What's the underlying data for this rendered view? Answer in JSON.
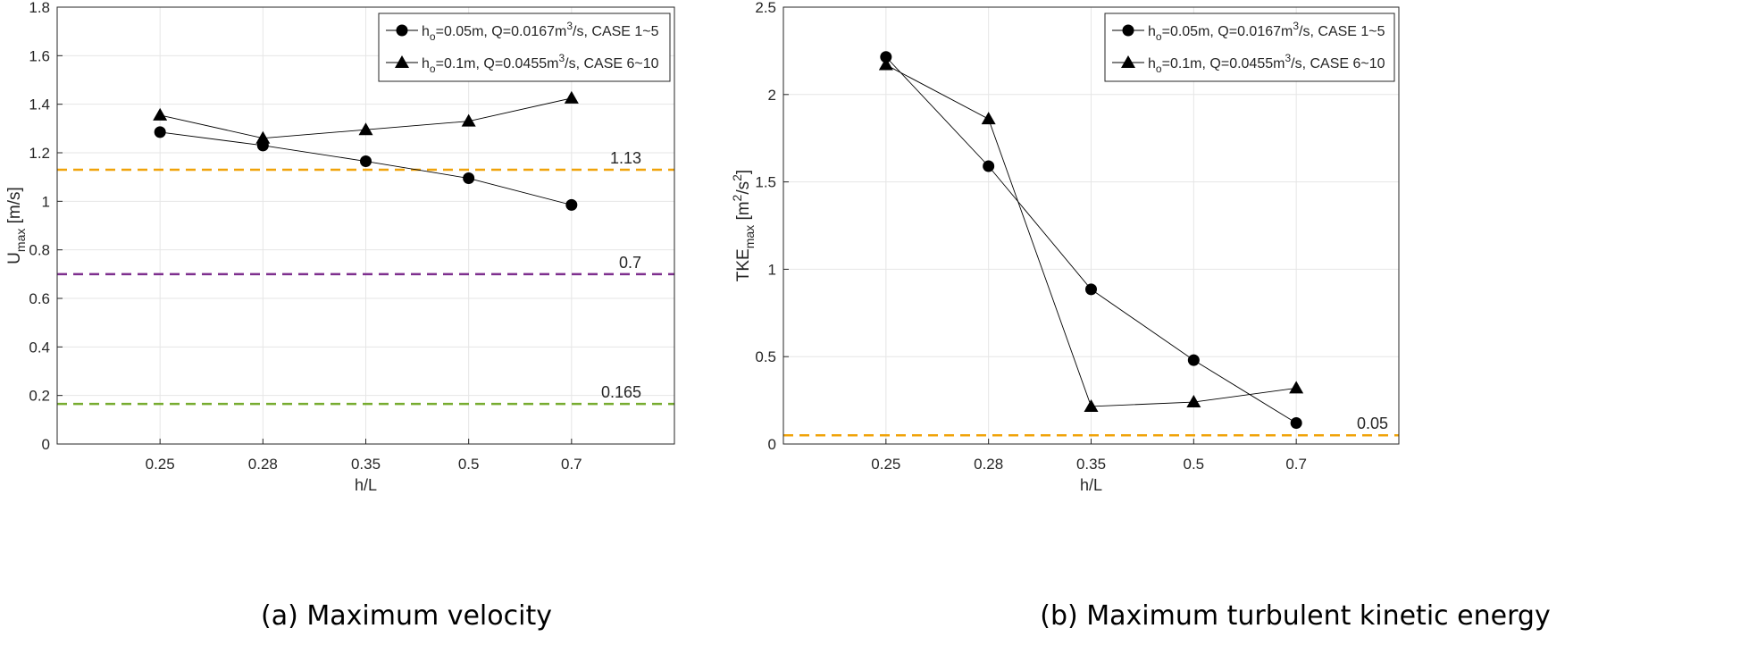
{
  "captions": {
    "a": "(a) Maximum velocity",
    "b": "(b) Maximum turbulent kinetic energy"
  },
  "colors": {
    "orange": "#f0a30a",
    "purple": "#7e2f8e",
    "green": "#77ac30",
    "series": "#000000"
  },
  "chart_data": [
    {
      "type": "line",
      "title": "",
      "xlabel": "h/L",
      "ylabel": "U_max [m/s]",
      "ylabel_parts": {
        "main": "U",
        "sub": "max",
        "unit": " [m/s]"
      },
      "categories": [
        "0.25",
        "0.28",
        "0.35",
        "0.5",
        "0.7"
      ],
      "ylim": [
        0,
        1.8
      ],
      "yticks": [
        0,
        0.2,
        0.4,
        0.6,
        0.8,
        1,
        1.2,
        1.4,
        1.6,
        1.8
      ],
      "ytick_labels": [
        "0",
        "0.2",
        "0.4",
        "0.6",
        "0.8",
        "1",
        "1.2",
        "1.4",
        "1.6",
        "1.8"
      ],
      "grid": true,
      "legend_position": "top-right",
      "series": [
        {
          "name": "h_o=0.05m, Q=0.0167m^3/s, CASE 1~5",
          "marker": "circle",
          "legend": {
            "pre": "h",
            "sub": "o",
            "mid": "=0.05m, Q=0.0167m",
            "sup": "3",
            "post": "/s, CASE 1~5"
          },
          "values": [
            1.285,
            1.23,
            1.165,
            1.095,
            0.985
          ]
        },
        {
          "name": "h_o=0.1m, Q=0.0455m^3/s, CASE 6~10",
          "marker": "triangle",
          "legend": {
            "pre": "h",
            "sub": "o",
            "mid": "=0.1m, Q=0.0455m",
            "sup": "3",
            "post": "/s, CASE 6~10"
          },
          "values": [
            1.355,
            1.26,
            1.295,
            1.33,
            1.425
          ]
        }
      ],
      "reference_lines": [
        {
          "value": 1.13,
          "label": "1.13",
          "color": "#f0a30a"
        },
        {
          "value": 0.7,
          "label": "0.7",
          "color": "#7e2f8e"
        },
        {
          "value": 0.165,
          "label": "0.165",
          "color": "#77ac30"
        }
      ]
    },
    {
      "type": "line",
      "title": "",
      "xlabel": "h/L",
      "ylabel": "TKE_max [m^2/s^2]",
      "ylabel_parts": {
        "main": "TKE",
        "sub": "max",
        "unit1": " [m",
        "sup1": "2",
        "unit2": "/s",
        "sup2": "2",
        "unit3": "]"
      },
      "categories": [
        "0.25",
        "0.28",
        "0.35",
        "0.5",
        "0.7"
      ],
      "ylim": [
        0,
        2.5
      ],
      "yticks": [
        0,
        0.5,
        1,
        1.5,
        2,
        2.5
      ],
      "ytick_labels": [
        "0",
        "0.5",
        "1",
        "1.5",
        "2",
        "2.5"
      ],
      "grid": true,
      "legend_position": "top-right",
      "series": [
        {
          "name": "h_o=0.05m, Q=0.0167m^3/s, CASE 1~5",
          "marker": "circle",
          "legend": {
            "pre": "h",
            "sub": "o",
            "mid": "=0.05m, Q=0.0167m",
            "sup": "3",
            "post": "/s, CASE 1~5"
          },
          "values": [
            2.215,
            1.59,
            0.885,
            0.48,
            0.12
          ]
        },
        {
          "name": "h_o=0.1m, Q=0.0455m^3/s, CASE 6~10",
          "marker": "triangle",
          "legend": {
            "pre": "h",
            "sub": "o",
            "mid": "=0.1m, Q=0.0455m",
            "sup": "3",
            "post": "/s, CASE 6~10"
          },
          "values": [
            2.17,
            1.86,
            0.215,
            0.24,
            0.32
          ]
        }
      ],
      "reference_lines": [
        {
          "value": 0.05,
          "label": "0.05",
          "color": "#f0a30a"
        }
      ]
    }
  ]
}
